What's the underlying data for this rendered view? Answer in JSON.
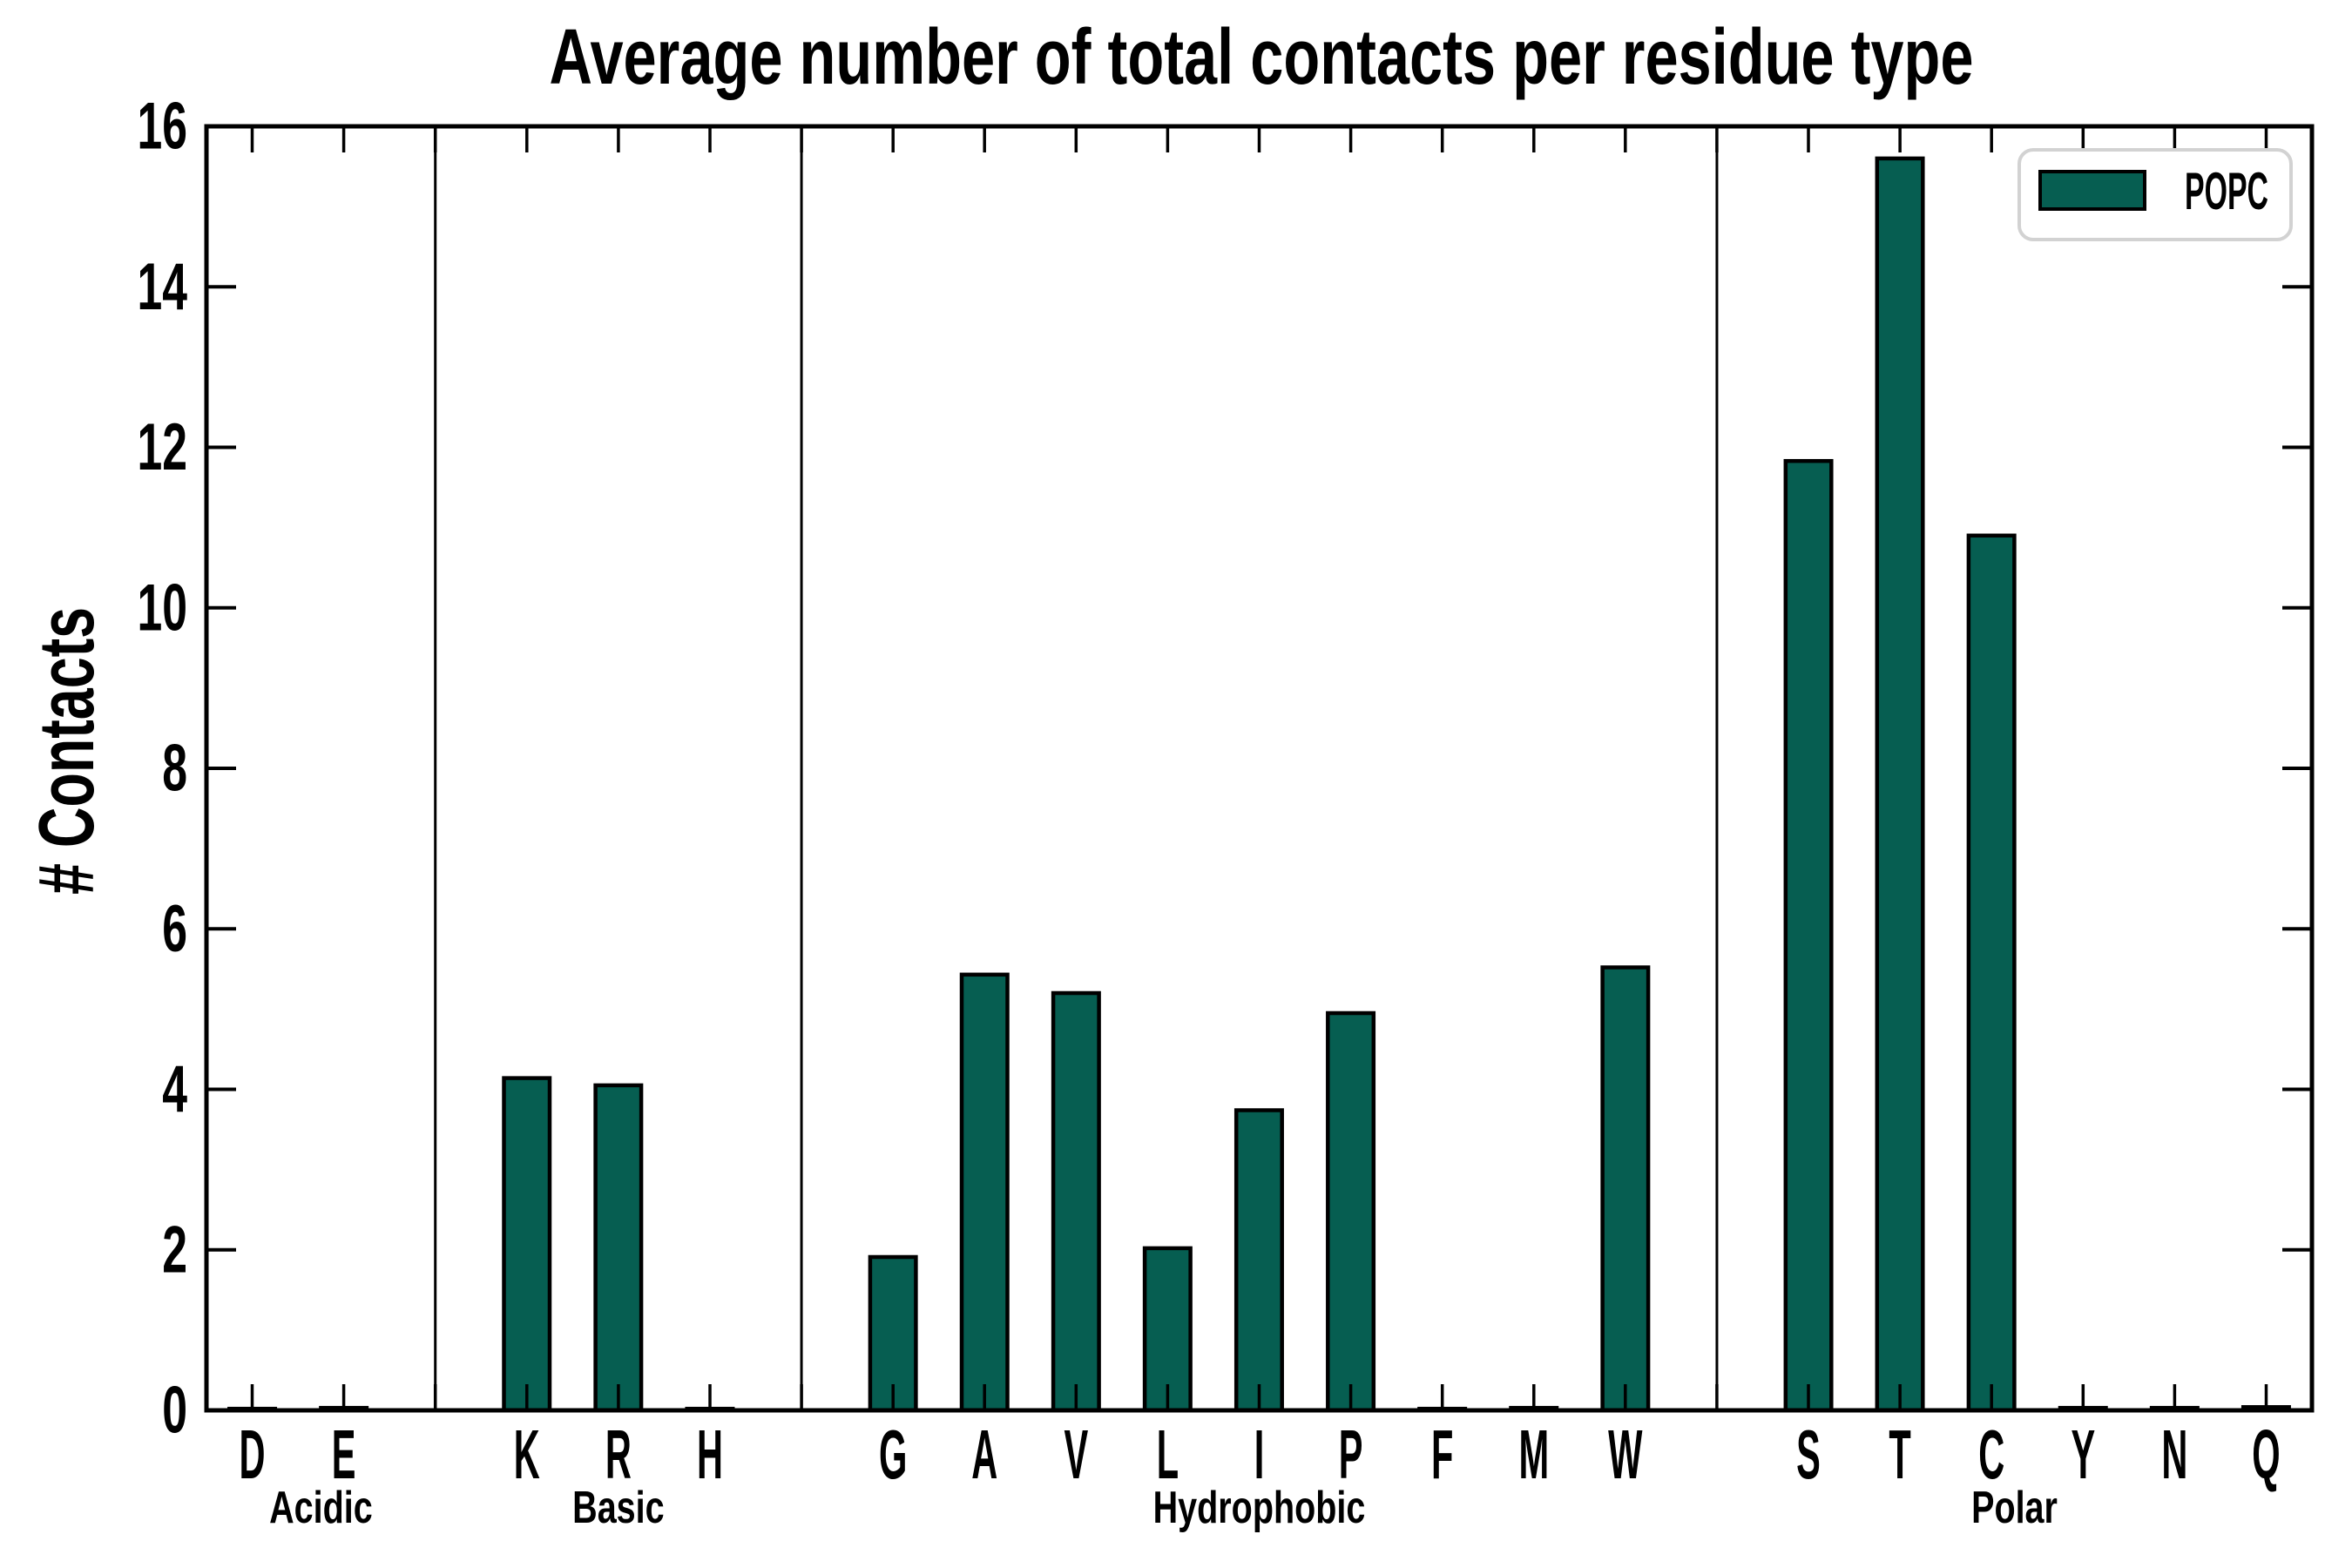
{
  "chart_data": {
    "type": "bar",
    "title": "Average number of total contacts per residue type",
    "ylabel": "# Contacts",
    "ylim": [
      0,
      16
    ],
    "yticks": [
      0,
      2,
      4,
      6,
      8,
      10,
      12,
      14,
      16
    ],
    "legend": {
      "label": "POPC",
      "position": "upper right"
    },
    "colors": {
      "bar_fill": "#065e51",
      "bar_edge": "#000000",
      "axis": "#000000",
      "legend_border": "#d2d2d2",
      "background": "#ffffff",
      "text": "#000000"
    },
    "bar_width_fraction": 0.5,
    "grid": false,
    "groups": [
      {
        "label": "Acidic",
        "categories": [
          "D",
          "E"
        ],
        "values": [
          0.02,
          0.03
        ]
      },
      {
        "label": "Basic",
        "categories": [
          "K",
          "R",
          "H"
        ],
        "values": [
          4.14,
          4.05,
          0.02
        ]
      },
      {
        "label": "Hydrophobic",
        "categories": [
          "G",
          "A",
          "V",
          "L",
          "I",
          "P",
          "F",
          "M",
          "W"
        ],
        "values": [
          1.91,
          5.43,
          5.2,
          2.02,
          3.74,
          4.95,
          0.02,
          0.03,
          5.52
        ]
      },
      {
        "label": "Polar",
        "categories": [
          "S",
          "T",
          "C",
          "Y",
          "N",
          "Q"
        ],
        "values": [
          11.83,
          15.6,
          10.9,
          0.03,
          0.03,
          0.04
        ]
      }
    ]
  }
}
